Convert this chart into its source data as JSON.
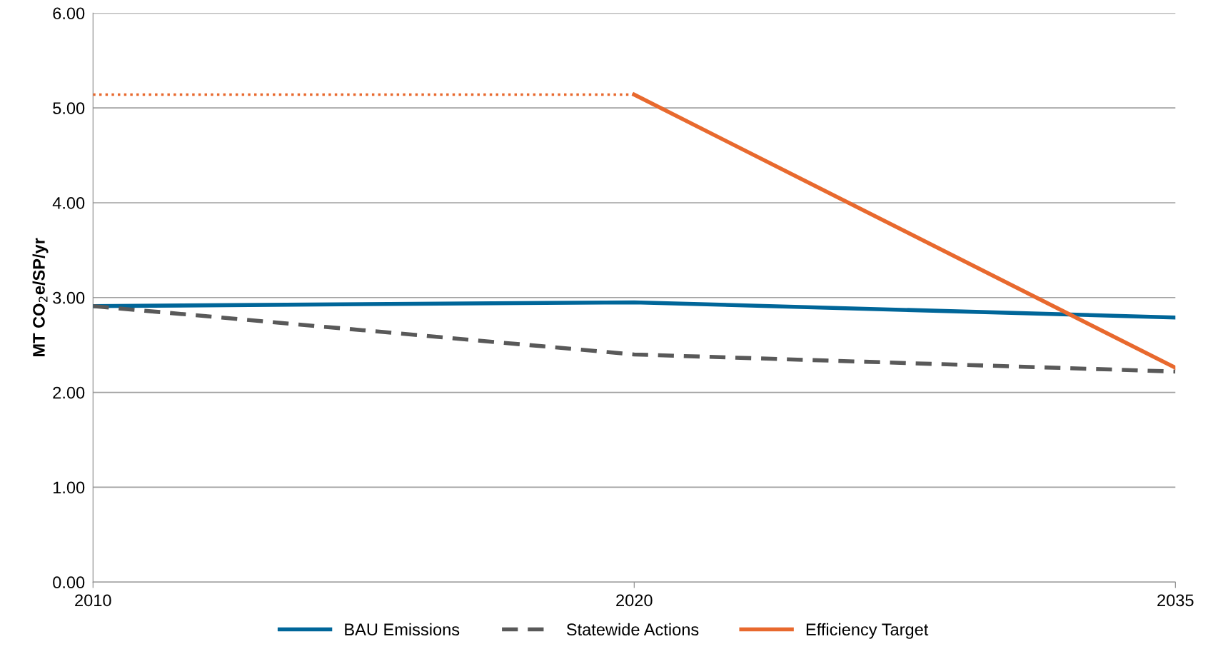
{
  "chart_data": {
    "type": "line",
    "ylabel": "MT CO$_{2}$e/SP/yr",
    "categories": [
      "2010",
      "2020",
      "2035"
    ],
    "series": [
      {
        "name": "BAU Emissions",
        "color": "#006699",
        "values": [
          2.91,
          2.95,
          2.79
        ],
        "line_style": "solid"
      },
      {
        "name": "Statewide Actions",
        "color": "#595959",
        "values": [
          2.91,
          2.4,
          2.22
        ],
        "line_style": "dashed"
      },
      {
        "name": "Efficiency Target",
        "color": "#e8692e",
        "values": [
          null,
          5.14,
          2.26
        ],
        "line_style": "solid"
      },
      {
        "color": "#e8692e",
        "values": [
          5.14,
          5.14,
          null
        ],
        "line_style": "dotted"
      }
    ],
    "ylim": [
      0,
      6
    ],
    "yticks": [
      {
        "value": 0,
        "label": "0.00"
      },
      {
        "value": 1,
        "label": "1.00"
      },
      {
        "value": 2,
        "label": "2.00"
      },
      {
        "value": 3,
        "label": "3.00"
      },
      {
        "value": 4,
        "label": "4.00"
      },
      {
        "value": 5,
        "label": "5.00"
      },
      {
        "value": 6,
        "label": "6.00"
      }
    ],
    "grid": "y",
    "legend": "bottom",
    "marker": "none"
  }
}
